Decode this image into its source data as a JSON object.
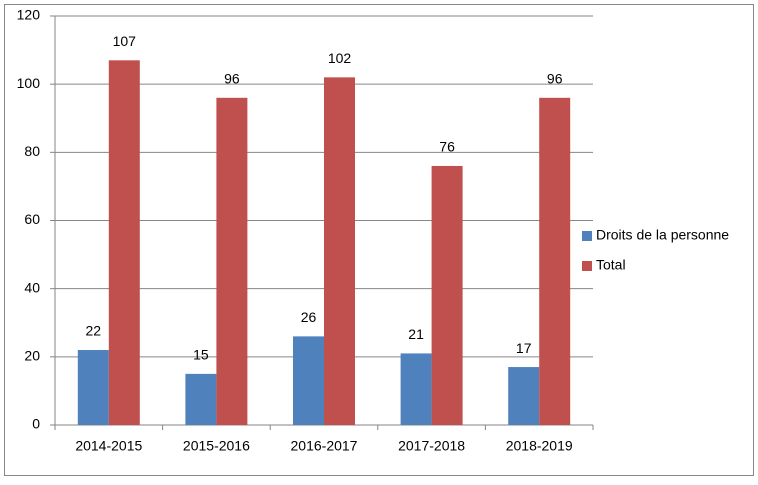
{
  "chart_data": {
    "type": "bar",
    "categories": [
      "2014-2015",
      "2015-2016",
      "2016-2017",
      "2017-2018",
      "2018-2019"
    ],
    "series": [
      {
        "name": "Droits de la personne",
        "color": "#4f81bd",
        "values": [
          22,
          15,
          26,
          21,
          17
        ]
      },
      {
        "name": "Total",
        "color": "#c0504d",
        "values": [
          107,
          96,
          102,
          76,
          96
        ]
      }
    ],
    "ylim": [
      0,
      120
    ],
    "yticks": [
      0,
      20,
      40,
      60,
      80,
      100,
      120
    ],
    "grid": true,
    "legend": "right"
  }
}
